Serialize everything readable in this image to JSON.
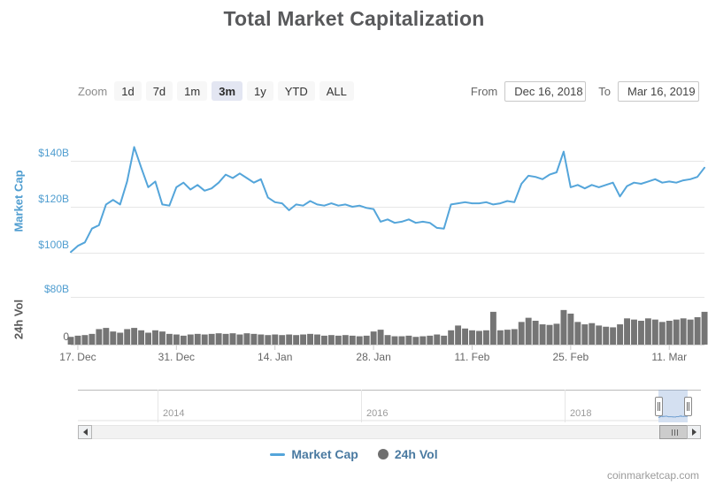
{
  "title": "Total Market Capitalization",
  "toolbar": {
    "zoom_label": "Zoom",
    "zoom_options": [
      "1d",
      "7d",
      "1m",
      "3m",
      "1y",
      "YTD",
      "ALL"
    ],
    "zoom_selected": "3m",
    "from_label": "From",
    "from_value": "Dec 16, 2018",
    "to_label": "To",
    "to_value": "Mar 16, 2019"
  },
  "chart_data": {
    "type": "line+column",
    "x_start": "Dec 16, 2018",
    "x_end": "Mar 16, 2019",
    "x_tick_labels": [
      "17. Dec",
      "31. Dec",
      "14. Jan",
      "28. Jan",
      "11. Feb",
      "25. Feb",
      "11. Mar"
    ],
    "x_tick_days": [
      1,
      15,
      29,
      43,
      57,
      71,
      85
    ],
    "panes": [
      {
        "name": "Market Cap",
        "type": "line",
        "ylabel": "Market Cap",
        "yticks": [
          "$100B",
          "$120B",
          "$140B"
        ],
        "ylim_billions": [
          95,
          150
        ]
      },
      {
        "name": "24h Vol",
        "type": "column",
        "ylabel": "24h Vol",
        "yticks": [
          "0",
          "$80B"
        ],
        "ylim_billions": [
          0,
          80
        ]
      }
    ],
    "market_cap_billions": [
      100.3,
      103.0,
      104.5,
      110.5,
      112.0,
      121.0,
      123.0,
      121.0,
      131.0,
      146.0,
      137.0,
      128.5,
      131.0,
      121.0,
      120.5,
      128.5,
      130.5,
      127.5,
      129.5,
      127.0,
      128.0,
      130.5,
      134.0,
      132.5,
      134.5,
      132.5,
      130.5,
      132.0,
      124.0,
      122.0,
      121.5,
      118.5,
      121.0,
      120.5,
      122.5,
      121.0,
      120.5,
      121.5,
      120.5,
      121.0,
      120.0,
      120.5,
      119.5,
      119.0,
      113.5,
      114.5,
      113.0,
      113.5,
      114.5,
      113.0,
      113.5,
      113.0,
      110.8,
      110.5,
      121.0,
      121.5,
      122.0,
      121.5,
      121.5,
      122.0,
      121.0,
      121.5,
      122.5,
      122.0,
      130.0,
      133.5,
      133.0,
      132.0,
      134.0,
      135.0,
      144.0,
      128.5,
      129.5,
      128.0,
      129.5,
      128.5,
      129.5,
      130.5,
      124.5,
      129.0,
      130.5,
      130.0,
      131.0,
      132.0,
      130.5,
      131.0,
      130.5,
      131.5,
      132.0,
      133.0,
      137.0
    ],
    "volume_billions": [
      13,
      15,
      16,
      18,
      26,
      28,
      22,
      20,
      26,
      28,
      24,
      20,
      24,
      22,
      18,
      17,
      15,
      17,
      18,
      17,
      18,
      19,
      18,
      19,
      17,
      19,
      18,
      17,
      16,
      17,
      16,
      17,
      16,
      17,
      18,
      17,
      15,
      16,
      15,
      16,
      15,
      14,
      15,
      22,
      25,
      16,
      14,
      14,
      15,
      13,
      14,
      15,
      17,
      15,
      24,
      32,
      27,
      24,
      23,
      24,
      55,
      24,
      25,
      26,
      38,
      45,
      40,
      34,
      33,
      35,
      58,
      52,
      38,
      34,
      36,
      32,
      30,
      29,
      34,
      44,
      42,
      40,
      44,
      42,
      38,
      40,
      42,
      44,
      42,
      46,
      55
    ]
  },
  "navigator": {
    "year_labels": [
      "2014",
      "2016",
      "2018"
    ],
    "selected_range": "Dec 16, 2018 - Mar 16, 2019"
  },
  "legend": [
    {
      "label": "Market Cap",
      "marker": "line",
      "color": "#54a5da"
    },
    {
      "label": "24h Vol",
      "marker": "circle",
      "color": "#6f6f6f"
    }
  ],
  "attribution": "coinmarketcap.com",
  "colors": {
    "line_blue": "#54a5da",
    "axis_blue": "#4f9dd0",
    "volume_gray": "#757575",
    "grid": "#e6e6e6",
    "axis_line": "#d4d4d4",
    "selected_zoom_bg": "#e3e6f2",
    "legend_text": "#4a7aa1"
  }
}
